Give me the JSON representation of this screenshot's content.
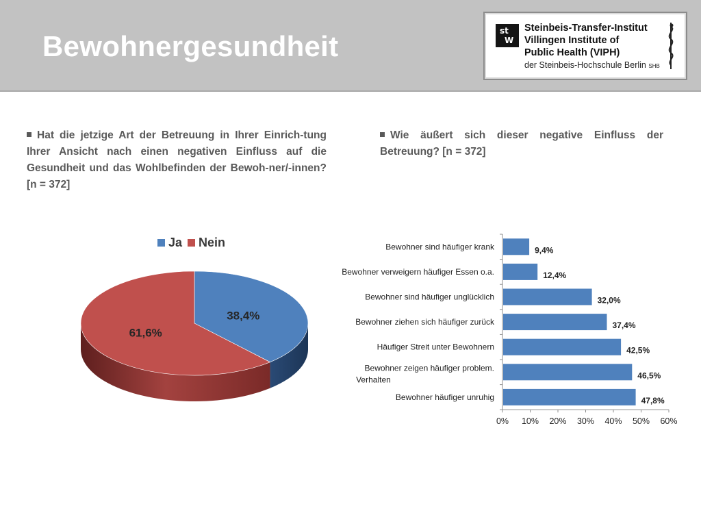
{
  "header": {
    "title": "Bewohnergesundheit"
  },
  "logo": {
    "mark_letters": [
      "st",
      "W"
    ],
    "lines": [
      "Steinbeis-Transfer-Institut",
      "Villingen Institute of",
      "Public Health (VIPH)",
      "der Steinbeis-Hochschule Berlin"
    ],
    "suffix": "SHB"
  },
  "questions": {
    "left": "Hat die jetzige Art der Betreuung in Ihrer Einrich-tung Ihrer Ansicht nach einen negativen Einfluss auf die Gesundheit und das Wohlbefinden der Bewoh-ner/-innen? [n = 372]",
    "right": "Wie äußert sich dieser negative Einfluss der Betreuung? [n = 372]"
  },
  "colors": {
    "blue": "#4f81bd",
    "red": "#c0504d",
    "header_bg": "#c2c2c2"
  },
  "chart_data": [
    {
      "type": "pie",
      "style": "3d",
      "legend": "top",
      "categories": [
        "Ja",
        "Nein"
      ],
      "values": [
        38.4,
        61.6
      ],
      "labels": [
        "38,4%",
        "61,6%"
      ],
      "colors": [
        "#4f81bd",
        "#c0504d"
      ]
    },
    {
      "type": "bar",
      "orientation": "horizontal",
      "categories": [
        "Bewohner sind häufiger krank",
        "Bewohner verweigern häufiger Essen o.a.",
        "Bewohner sind häufiger unglücklich",
        "Bewohner ziehen sich häufiger zurück",
        "Häufiger Streit unter Bewohnern",
        "Bewohner zeigen häufiger problem. Verhalten",
        "Bewohner häufiger unruhig"
      ],
      "values": [
        9.4,
        12.4,
        32.0,
        37.4,
        42.5,
        46.5,
        47.8
      ],
      "labels": [
        "9,4%",
        "12,4%",
        "32,0%",
        "37,4%",
        "42,5%",
        "46,5%",
        "47,8%"
      ],
      "xlim": [
        0,
        60
      ],
      "xticks": [
        "0%",
        "10%",
        "20%",
        "30%",
        "40%",
        "50%",
        "60%"
      ],
      "grid": false,
      "color": "#4f81bd"
    }
  ]
}
